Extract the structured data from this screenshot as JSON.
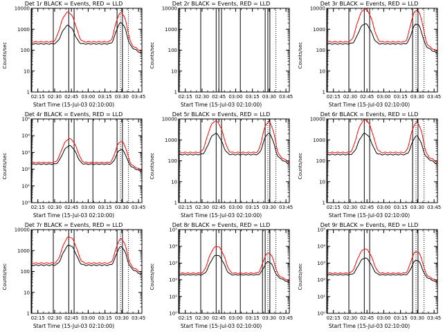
{
  "chart_data": [
    {
      "type": "line",
      "title": "Det 1r BLACK = Events, RED = LLD",
      "xlabel": "Start Time (15-Jul-03 02:10:00)",
      "ylabel": "Counts/sec",
      "yscale": "log",
      "ylim": [
        1,
        10000
      ],
      "ytick_labels": [
        "1",
        "10",
        "100",
        "1000",
        "10000"
      ],
      "x_ticks": [
        "02:15",
        "02:30",
        "02:45",
        "03:00",
        "03:15",
        "03:30",
        "03:45"
      ],
      "series": [
        {
          "name": "Events",
          "color": "#000000",
          "base": 200,
          "peaks": [
            [
              2.7,
              1500,
              0.09
            ],
            [
              3.49,
              2000,
              0.07
            ]
          ]
        },
        {
          "name": "LLD",
          "color": "#ff0000",
          "base": 250,
          "peaks": [
            [
              2.7,
              6500,
              0.09
            ],
            [
              3.49,
              6000,
              0.07
            ]
          ]
        }
      ],
      "solid_vlines": [
        2.16,
        2.48,
        2.71,
        2.79,
        3.43,
        3.51
      ],
      "dotted_vlines": [
        3.48,
        3.6
      ]
    },
    {
      "type": "line",
      "title": "Det 2r BLACK = Events, RED = LLD",
      "xlabel": "Start Time (15-Jul-03 02:10:00)",
      "ylabel": "Counts/sec",
      "yscale": "log",
      "ylim": [
        1,
        10000
      ],
      "ytick_labels": [
        "1",
        "10",
        "100",
        "1000",
        "10000"
      ],
      "x_ticks": [
        "02:15",
        "02:30",
        "02:45",
        "03:00",
        "03:15",
        "03:30",
        "03:45"
      ],
      "series": [],
      "solid_vlines": [
        2.16,
        2.48,
        2.71,
        2.75,
        2.79,
        3.07,
        3.44,
        3.48,
        3.51
      ],
      "dotted_vlines": [
        3.48,
        3.6
      ]
    },
    {
      "type": "line",
      "title": "Det 3r BLACK = Events, RED = LLD",
      "xlabel": "Start Time (15-Jul-03 02:10:00)",
      "ylabel": "Counts/sec",
      "yscale": "log",
      "ylim": [
        1,
        10000
      ],
      "ytick_labels": [
        "1",
        "10",
        "100",
        "1000",
        "10000"
      ],
      "x_ticks": [
        "02:15",
        "02:30",
        "02:45",
        "03:00",
        "03:15",
        "03:30",
        "03:45"
      ],
      "series": [
        {
          "name": "Events",
          "color": "#000000",
          "base": 200,
          "peaks": [
            [
              2.72,
              1800,
              0.09
            ],
            [
              3.49,
              1800,
              0.07
            ]
          ]
        },
        {
          "name": "LLD",
          "color": "#ff0000",
          "base": 250,
          "peaks": [
            [
              2.72,
              9000,
              0.09
            ],
            [
              3.49,
              8000,
              0.07
            ]
          ]
        }
      ],
      "solid_vlines": [
        2.16,
        2.48,
        2.71,
        2.79,
        3.43,
        3.51
      ],
      "dotted_vlines": [
        3.48,
        3.6
      ]
    },
    {
      "type": "line",
      "title": "Det 4r BLACK = Events, RED = LLD",
      "xlabel": "Start Time (15-Jul-03 02:10:00)",
      "ylabel": "Counts/sec",
      "yscale": "log",
      "ylim": [
        1,
        100000
      ],
      "ytick_labels": [
        "10⁰",
        "10¹",
        "10²",
        "10³",
        "10⁴",
        "10⁵"
      ],
      "x_ticks": [
        "02:15",
        "02:30",
        "02:45",
        "03:00",
        "03:15",
        "03:30",
        "03:45"
      ],
      "series": [
        {
          "name": "Events",
          "color": "#000000",
          "base": 200,
          "peaks": [
            [
              2.72,
              2500,
              0.09
            ],
            [
              3.49,
              1500,
              0.07
            ]
          ]
        },
        {
          "name": "LLD",
          "color": "#ff0000",
          "base": 250,
          "peaks": [
            [
              2.72,
              6500,
              0.09
            ],
            [
              3.49,
              4500,
              0.07
            ]
          ]
        }
      ],
      "solid_vlines": [
        2.16,
        2.48,
        2.71,
        2.79,
        3.07,
        3.43,
        3.51
      ],
      "dotted_vlines": [
        3.48,
        3.6
      ]
    },
    {
      "type": "line",
      "title": "Det 5r BLACK = Events, RED = LLD",
      "xlabel": "Start Time (15-Jul-03 02:10:00)",
      "ylabel": "Counts/sec",
      "yscale": "log",
      "ylim": [
        1,
        10000
      ],
      "ytick_labels": [
        "1",
        "10",
        "100",
        "1000",
        "10000"
      ],
      "x_ticks": [
        "02:15",
        "02:30",
        "02:45",
        "03:00",
        "03:15",
        "03:30",
        "03:45"
      ],
      "series": [
        {
          "name": "Events",
          "color": "#000000",
          "base": 200,
          "peaks": [
            [
              2.7,
              2000,
              0.09
            ],
            [
              3.49,
              2000,
              0.07
            ]
          ]
        },
        {
          "name": "LLD",
          "color": "#ff0000",
          "base": 250,
          "peaks": [
            [
              2.7,
              8000,
              0.09
            ],
            [
              3.49,
              7000,
              0.07
            ]
          ]
        }
      ],
      "solid_vlines": [
        2.16,
        2.48,
        2.71,
        2.79,
        3.07,
        3.44,
        3.51
      ],
      "dotted_vlines": [
        3.48,
        3.6
      ]
    },
    {
      "type": "line",
      "title": "Det 6r BLACK = Events, RED = LLD",
      "xlabel": "Start Time (15-Jul-03 02:10:00)",
      "ylabel": "Counts/sec",
      "yscale": "log",
      "ylim": [
        1,
        10000
      ],
      "ytick_labels": [
        "1",
        "10",
        "100",
        "1000",
        "10000"
      ],
      "x_ticks": [
        "02:15",
        "02:30",
        "02:45",
        "03:00",
        "03:15",
        "03:30",
        "03:45"
      ],
      "series": [
        {
          "name": "Events",
          "color": "#000000",
          "base": 200,
          "peaks": [
            [
              2.72,
              2000,
              0.09
            ],
            [
              3.49,
              1500,
              0.07
            ]
          ]
        },
        {
          "name": "LLD",
          "color": "#ff0000",
          "base": 250,
          "peaks": [
            [
              2.72,
              9000,
              0.09
            ],
            [
              3.49,
              6500,
              0.07
            ]
          ]
        }
      ],
      "solid_vlines": [
        2.16,
        2.48,
        2.71,
        2.79,
        3.43,
        3.51
      ],
      "dotted_vlines": [
        3.48,
        3.6
      ]
    },
    {
      "type": "line",
      "title": "Det 7r BLACK = Events, RED = LLD",
      "xlabel": "Start Time (15-Jul-03 02:10:00)",
      "ylabel": "Counts/sec",
      "yscale": "log",
      "ylim": [
        1,
        10000
      ],
      "ytick_labels": [
        "1",
        "10",
        "100",
        "1000",
        "10000"
      ],
      "x_ticks": [
        "02:15",
        "02:30",
        "02:45",
        "03:00",
        "03:15",
        "03:30",
        "03:45"
      ],
      "series": [
        {
          "name": "Events",
          "color": "#000000",
          "base": 200,
          "peaks": [
            [
              2.72,
              1800,
              0.09
            ],
            [
              3.49,
              1500,
              0.07
            ]
          ]
        },
        {
          "name": "LLD",
          "color": "#ff0000",
          "base": 250,
          "peaks": [
            [
              2.72,
              4500,
              0.09
            ],
            [
              3.49,
              3500,
              0.07
            ]
          ]
        }
      ],
      "solid_vlines": [
        2.16,
        2.48,
        2.71,
        2.79,
        3.43,
        3.51
      ],
      "dotted_vlines": [
        3.48,
        3.6
      ]
    },
    {
      "type": "line",
      "title": "Det 8r BLACK = Events, RED = LLD",
      "xlabel": "Start Time (15-Jul-03 02:10:00)",
      "ylabel": "Counts/sec",
      "yscale": "log",
      "ylim": [
        1,
        100000
      ],
      "ytick_labels": [
        "10⁰",
        "10¹",
        "10²",
        "10³",
        "10⁴",
        "10⁵"
      ],
      "x_ticks": [
        "02:15",
        "02:30",
        "02:45",
        "03:00",
        "03:15",
        "03:30",
        "03:45"
      ],
      "series": [
        {
          "name": "Events",
          "color": "#000000",
          "base": 200,
          "peaks": [
            [
              2.72,
              3000,
              0.09
            ],
            [
              3.49,
              1200,
              0.07
            ]
          ]
        },
        {
          "name": "LLD",
          "color": "#ff0000",
          "base": 250,
          "peaks": [
            [
              2.72,
              10000,
              0.09
            ],
            [
              3.49,
              4000,
              0.07
            ]
          ]
        }
      ],
      "solid_vlines": [
        2.16,
        2.48,
        2.71,
        2.79,
        3.07,
        3.4,
        3.44,
        3.51
      ],
      "dotted_vlines": [
        3.48,
        3.6
      ]
    },
    {
      "type": "line",
      "title": "Det 9r BLACK = Events, RED = LLD",
      "xlabel": "Start Time (15-Jul-03 02:10:00)",
      "ylabel": "Counts/sec",
      "yscale": "log",
      "ylim": [
        1,
        100000
      ],
      "ytick_labels": [
        "10⁰",
        "10¹",
        "10²",
        "10³",
        "10⁴",
        "10⁵"
      ],
      "x_ticks": [
        "02:15",
        "02:30",
        "02:45",
        "03:00",
        "03:15",
        "03:30",
        "03:45"
      ],
      "series": [
        {
          "name": "Events",
          "color": "#000000",
          "base": 200,
          "peaks": [
            [
              2.72,
              2000,
              0.09
            ],
            [
              3.49,
              1500,
              0.07
            ]
          ]
        },
        {
          "name": "LLD",
          "color": "#ff0000",
          "base": 250,
          "peaks": [
            [
              2.72,
              7000,
              0.09
            ],
            [
              3.49,
              5000,
              0.07
            ]
          ]
        }
      ],
      "solid_vlines": [
        2.16,
        2.48,
        2.71,
        2.79,
        3.43,
        3.51
      ],
      "dotted_vlines": [
        3.48,
        3.6
      ]
    }
  ]
}
